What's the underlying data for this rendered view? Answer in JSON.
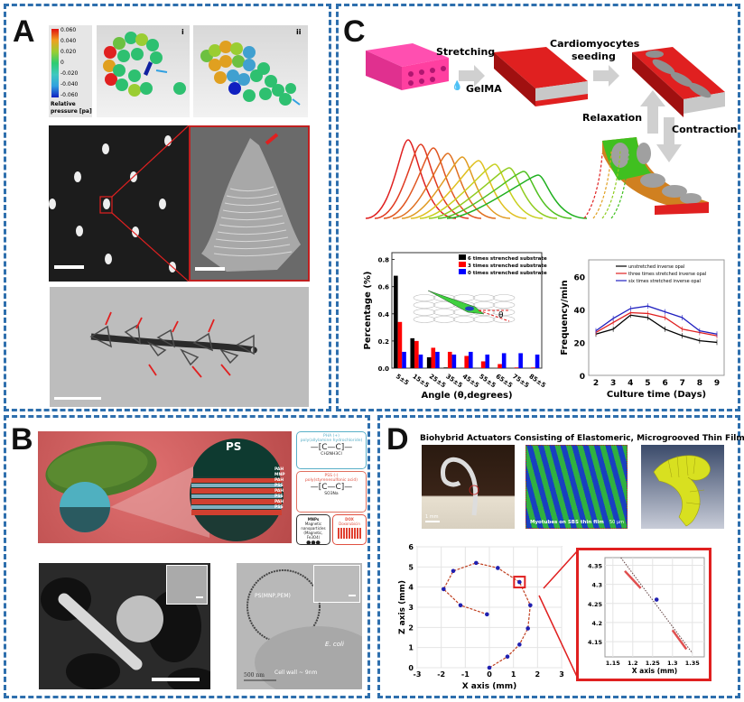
{
  "panels": {
    "A": {
      "label": "A",
      "colorbar": {
        "ticks": [
          "0.060",
          "0.040",
          "0.020",
          "0",
          "-0.020",
          "-0.040",
          "-0.060"
        ],
        "title_line1": "Relative",
        "title_line2": "pressure [pa]",
        "colors": [
          "#e01010",
          "#f0a020",
          "#9acd32",
          "#2ecc71",
          "#40c8c0",
          "#30a0e0",
          "#1020c0"
        ]
      },
      "sim_i_label": "i",
      "sim_ii_label": "ii"
    },
    "B": {
      "label": "B",
      "sphere_label": "PS",
      "layers": [
        "PAH",
        "MNP",
        "PAH",
        "PSS",
        "PAH",
        "PSS",
        "PAH",
        "PSS",
        "PAH"
      ],
      "legend": {
        "pah_title": "PHA (+)",
        "pah_name": "poly(allylamine hydrochloride)",
        "pah_formula": "CH2NH3Cl",
        "pss_title": "PSS (-)",
        "pss_name": "poly(styrenesulfonic acid)",
        "pss_formula": "SO3Na",
        "mnp_title": "MNPs",
        "mnp_desc": "Magnetic nanoparticles (Magnetic, Fe3O4)",
        "dox_title": "DOX",
        "dox_desc": "Doxorubicin"
      },
      "tem_label": "PS(MNP,PEM)",
      "ecoli_label": "E. coli",
      "cellwall_label": "Cell wall ~ 9nm",
      "scalebar_label": "500 nm"
    },
    "C": {
      "label": "C",
      "steps": {
        "stretching": "Stretching",
        "gelma": "GelMA",
        "seeding_line1": "Cardiomyocytes",
        "seeding_line2": "seeding",
        "relaxation": "Relaxation",
        "contraction": "Contraction"
      }
    },
    "D": {
      "label": "D",
      "title": "Biohybrid Actuators Consisting of Elastomeric, Microgrooved Thin Films",
      "photo_scalebar": "1 mm",
      "fluor_caption": "Myotubes on SBS thin film",
      "fluor_scalebar": "50 µm"
    }
  },
  "chart_data": [
    {
      "id": "C-bar",
      "type": "bar",
      "title": "",
      "xlabel": "Angle (θ,degrees)",
      "ylabel": "Percentage (%)",
      "ylim": [
        0,
        0.85
      ],
      "yticks": [
        "0.0",
        "0.2",
        "0.4",
        "0.6",
        "0.8"
      ],
      "categories": [
        "5±5",
        "15±5",
        "25±5",
        "35±5",
        "45±5",
        "55±5",
        "65±5",
        "75±5",
        "85±5"
      ],
      "legend_position": "top-right",
      "series": [
        {
          "name": "6 times strenched substrate",
          "color": "#000000",
          "values": [
            0.68,
            0.22,
            0.08,
            0.005,
            0.002,
            0.0,
            0.0,
            0.0,
            0.0
          ]
        },
        {
          "name": "3 times strenched substrate",
          "color": "#ff0000",
          "values": [
            0.34,
            0.2,
            0.15,
            0.12,
            0.09,
            0.05,
            0.03,
            0.005,
            0.005
          ]
        },
        {
          "name": "0 times strenched substrate",
          "color": "#0000ff",
          "values": [
            0.12,
            0.1,
            0.12,
            0.1,
            0.12,
            0.1,
            0.11,
            0.11,
            0.1
          ]
        }
      ]
    },
    {
      "id": "C-line",
      "type": "line",
      "xlabel": "Culture time (Days)",
      "ylabel": "Frequency/min",
      "x": [
        2,
        3,
        4,
        5,
        6,
        7,
        8,
        9
      ],
      "ylim": [
        0,
        70
      ],
      "yticks": [
        "0",
        "20",
        "40",
        "60"
      ],
      "legend_position": "top",
      "series": [
        {
          "name": "unstretched inverse opal",
          "color": "#000000",
          "values": [
            25,
            28,
            36.5,
            35,
            28,
            24,
            21,
            20
          ]
        },
        {
          "name": "three times stretched inverse opal",
          "color": "#e02020",
          "values": [
            26,
            32,
            38,
            37.5,
            35,
            28,
            26,
            24
          ]
        },
        {
          "name": "six times stretched inverse opal",
          "color": "#2020c0",
          "values": [
            27,
            34.5,
            40.5,
            42,
            38.5,
            35,
            27,
            25
          ]
        }
      ]
    },
    {
      "id": "D-trajectory",
      "type": "scatter",
      "xlabel": "X axis (mm)",
      "ylabel": "Z axis (mm)",
      "xlim": [
        -3,
        3
      ],
      "ylim": [
        0,
        6
      ],
      "xticks": [
        "-3",
        "-2",
        "-1",
        "0",
        "1",
        "2",
        "3"
      ],
      "yticks": [
        "0",
        "1",
        "2",
        "3",
        "4",
        "5",
        "6"
      ],
      "grid": true,
      "points": [
        [
          0,
          0
        ],
        [
          0.75,
          0.55
        ],
        [
          1.25,
          1.15
        ],
        [
          1.6,
          1.95
        ],
        [
          1.7,
          3.1
        ],
        [
          1.25,
          4.25
        ],
        [
          0.35,
          4.95
        ],
        [
          -0.55,
          5.2
        ],
        [
          -1.5,
          4.8
        ],
        [
          -1.9,
          3.9
        ],
        [
          -1.2,
          3.1
        ],
        [
          -0.1,
          2.65
        ]
      ]
    },
    {
      "id": "D-zoom",
      "type": "scatter",
      "xlabel": "X axis (mm)",
      "ylabel": "",
      "xlim": [
        1.13,
        1.38
      ],
      "ylim": [
        4.11,
        4.37
      ],
      "xticks": [
        "1.15",
        "1.2",
        "1.25",
        "1.3",
        "1.35"
      ],
      "yticks": [
        "4.15",
        "4.2",
        "4.25",
        "4.3",
        "4.35"
      ],
      "grid": true,
      "points": [
        [
          1.26,
          4.26
        ]
      ],
      "line": [
        [
          1.17,
          4.37
        ],
        [
          1.35,
          4.12
        ]
      ]
    }
  ]
}
